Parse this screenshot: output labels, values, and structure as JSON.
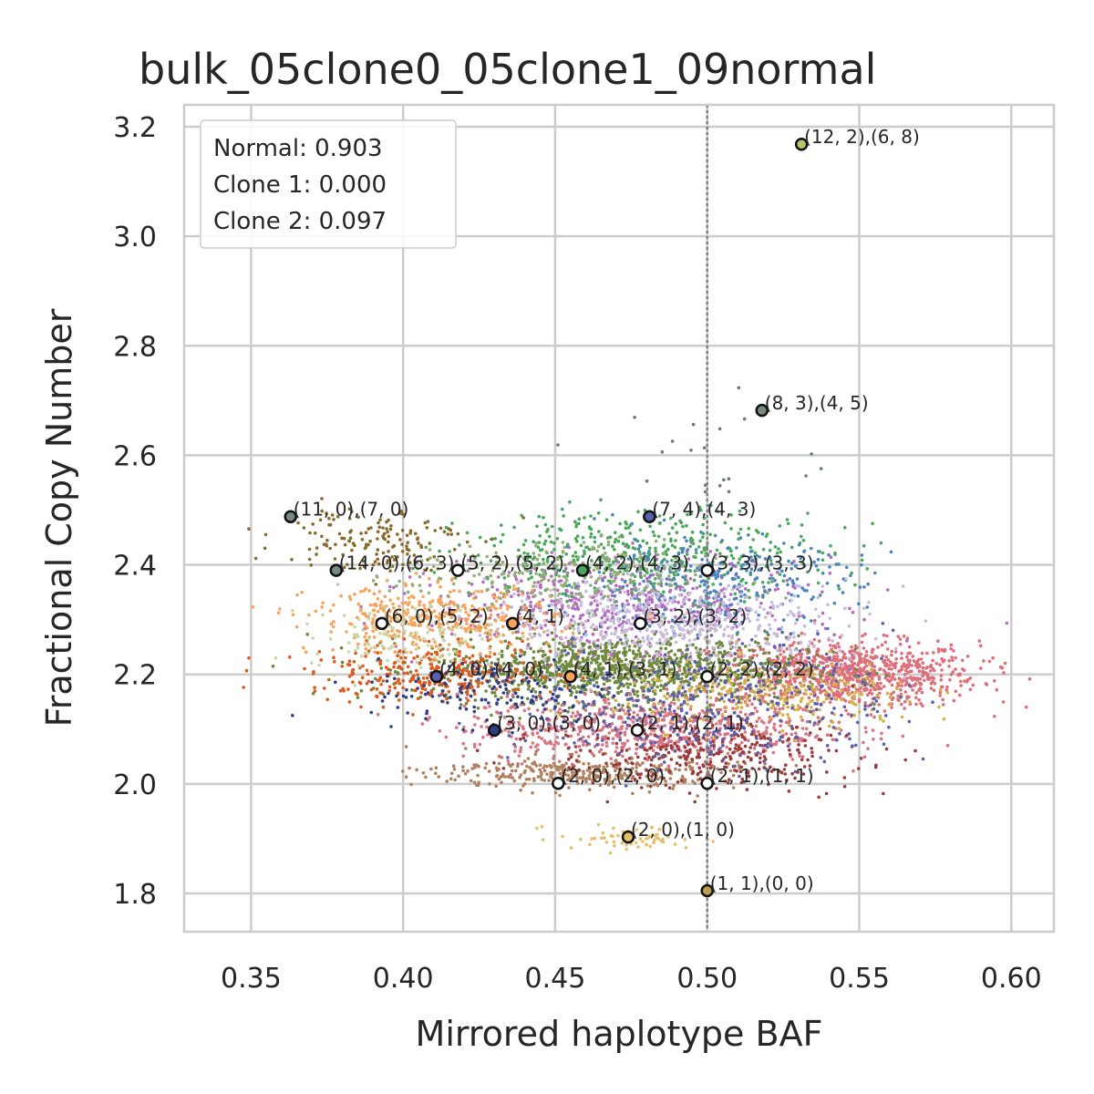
{
  "chart_data": {
    "type": "scatter",
    "title": "bulk_05clone0_05clone1_09normal",
    "xlabel": "Mirrored haplotype BAF",
    "ylabel": "Fractional Copy Number",
    "xlim": [
      0.328,
      0.614
    ],
    "ylim": [
      1.73,
      3.24
    ],
    "x_ticks": [
      0.35,
      0.4,
      0.45,
      0.5,
      0.55,
      0.6
    ],
    "x_tick_labels": [
      "0.35",
      "0.40",
      "0.45",
      "0.50",
      "0.55",
      "0.60"
    ],
    "y_ticks": [
      1.8,
      2.0,
      2.2,
      2.4,
      2.6,
      2.8,
      3.0,
      3.2
    ],
    "y_tick_labels": [
      "1.8",
      "2.0",
      "2.2",
      "2.4",
      "2.6",
      "2.8",
      "3.0",
      "3.2"
    ],
    "grid": true,
    "vline_x": 0.5,
    "legend": {
      "placement": "top-left",
      "lines": [
        "Normal: 0.903",
        "Clone 1: 0.000",
        "Clone 2: 0.097"
      ]
    },
    "clusters": [
      {
        "cx": 0.545,
        "cy": 2.2,
        "sx": 0.022,
        "sy": 0.03,
        "n": 900,
        "color": "#dd6e7a"
      },
      {
        "cx": 0.47,
        "cy": 2.21,
        "sx": 0.03,
        "sy": 0.03,
        "n": 1100,
        "color": "#6f8a3e"
      },
      {
        "cx": 0.48,
        "cy": 2.1,
        "sx": 0.03,
        "sy": 0.03,
        "n": 700,
        "color": "#d77583"
      },
      {
        "cx": 0.52,
        "cy": 2.16,
        "sx": 0.025,
        "sy": 0.03,
        "n": 300,
        "color": "#d8b048"
      },
      {
        "cx": 0.47,
        "cy": 2.33,
        "sx": 0.03,
        "sy": 0.04,
        "n": 500,
        "color": "#b46bc0"
      },
      {
        "cx": 0.48,
        "cy": 2.42,
        "sx": 0.03,
        "sy": 0.04,
        "n": 450,
        "color": "#4aa85a"
      },
      {
        "cx": 0.5,
        "cy": 2.37,
        "sx": 0.025,
        "sy": 0.04,
        "n": 300,
        "color": "#4a86bd"
      },
      {
        "cx": 0.49,
        "cy": 2.3,
        "sx": 0.03,
        "sy": 0.035,
        "n": 400,
        "color": "#c4bde0"
      },
      {
        "cx": 0.41,
        "cy": 2.3,
        "sx": 0.02,
        "sy": 0.03,
        "n": 400,
        "color": "#f7a35c"
      },
      {
        "cx": 0.41,
        "cy": 2.2,
        "sx": 0.02,
        "sy": 0.025,
        "n": 300,
        "color": "#e0591c"
      },
      {
        "cx": 0.39,
        "cy": 2.45,
        "sx": 0.015,
        "sy": 0.03,
        "n": 150,
        "color": "#8a6a2c"
      },
      {
        "cx": 0.46,
        "cy": 2.02,
        "sx": 0.025,
        "sy": 0.015,
        "n": 350,
        "color": "#b08060"
      },
      {
        "cx": 0.5,
        "cy": 2.05,
        "sx": 0.025,
        "sy": 0.03,
        "n": 300,
        "color": "#9a3a3a"
      },
      {
        "cx": 0.5,
        "cy": 2.15,
        "sx": 0.03,
        "sy": 0.06,
        "n": 400,
        "color": "#5a5fb0"
      },
      {
        "cx": 0.45,
        "cy": 2.38,
        "sx": 0.025,
        "sy": 0.03,
        "n": 250,
        "color": "#94ad78"
      },
      {
        "cx": 0.475,
        "cy": 1.9,
        "sx": 0.012,
        "sy": 0.012,
        "n": 60,
        "color": "#e4c06a"
      },
      {
        "cx": 0.43,
        "cy": 2.17,
        "sx": 0.02,
        "sy": 0.03,
        "n": 150,
        "color": "#2e3f86"
      },
      {
        "cx": 0.48,
        "cy": 2.28,
        "sx": 0.03,
        "sy": 0.04,
        "n": 150,
        "color": "#d1b8cd"
      },
      {
        "cx": 0.4,
        "cy": 2.27,
        "sx": 0.015,
        "sy": 0.03,
        "n": 120,
        "color": "#c7d7a6"
      },
      {
        "cx": 0.5,
        "cy": 2.6,
        "sx": 0.02,
        "sy": 0.06,
        "n": 20,
        "color": "#6a7d78"
      }
    ],
    "centers": [
      {
        "x": 0.531,
        "y": 3.168,
        "color": "#b8c66a",
        "label": "(12, 2),(6, 8)"
      },
      {
        "x": 0.518,
        "y": 2.682,
        "color": "#7a8a80",
        "label": "(8, 3),(4, 5)"
      },
      {
        "x": 0.363,
        "y": 2.488,
        "color": "#7a8a80",
        "label": "(11, 0),(7, 0)"
      },
      {
        "x": 0.481,
        "y": 2.488,
        "color": "#5a5fb0",
        "label": "(7, 4),(4, 3)"
      },
      {
        "x": 0.378,
        "y": 2.39,
        "color": "#7a8a80",
        "label": "(14, 0),(6, 3)"
      },
      {
        "x": 0.418,
        "y": 2.39,
        "color": "#ffffff",
        "label": "(5, 2),(5, 2)"
      },
      {
        "x": 0.459,
        "y": 2.39,
        "color": "#4aa85a",
        "label": "(4, 2),(4, 3)"
      },
      {
        "x": 0.5,
        "y": 2.39,
        "color": "#ffffff",
        "label": "(3, 3),(3, 3)"
      },
      {
        "x": 0.393,
        "y": 2.293,
        "color": "#ffffff",
        "label": "(6, 0),(5, 2)"
      },
      {
        "x": 0.436,
        "y": 2.293,
        "color": "#f7a35c",
        "label": "(4, 1)"
      },
      {
        "x": 0.478,
        "y": 2.293,
        "color": "#ffffff",
        "label": "(3, 2),(3, 2)"
      },
      {
        "x": 0.411,
        "y": 2.196,
        "color": "#5a5fb0",
        "label": "(4, 0),(4, 0)"
      },
      {
        "x": 0.455,
        "y": 2.196,
        "color": "#f7a35c",
        "label": "(4, 1),(3, 1)"
      },
      {
        "x": 0.5,
        "y": 2.196,
        "color": "#ffffff",
        "label": "(2, 2),(2, 2)"
      },
      {
        "x": 0.43,
        "y": 2.098,
        "color": "#2e3f86",
        "label": "(3, 0),(3, 0)"
      },
      {
        "x": 0.477,
        "y": 2.098,
        "color": "#ffffff",
        "label": "(2, 1),(2, 1)"
      },
      {
        "x": 0.451,
        "y": 2.001,
        "color": "#ffffff",
        "label": "(2, 0),(2, 0)"
      },
      {
        "x": 0.5,
        "y": 2.001,
        "color": "#ffffff",
        "label": "(2, 1),(1, 1)"
      },
      {
        "x": 0.474,
        "y": 1.903,
        "color": "#e4c06a",
        "label": "(2, 0),(1, 0)"
      },
      {
        "x": 0.5,
        "y": 1.805,
        "color": "#b8a050",
        "label": "(1, 1),(0, 0)"
      }
    ]
  }
}
